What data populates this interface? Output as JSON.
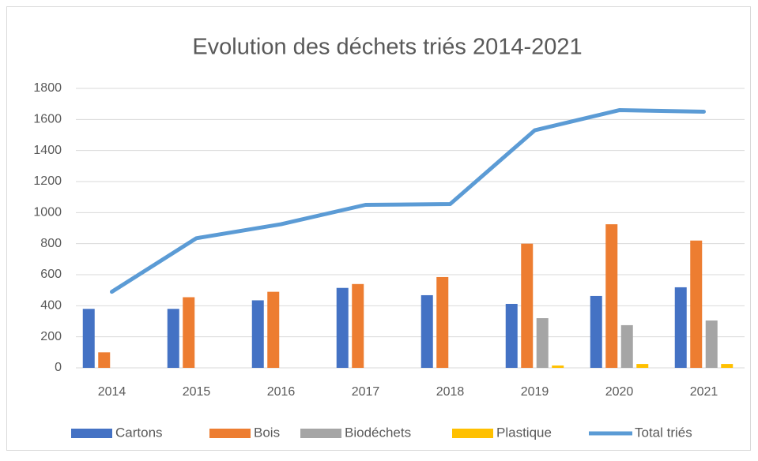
{
  "chart_data": {
    "type": "bar",
    "title": "Evolution des déchets triés 2014-2021",
    "categories": [
      "2014",
      "2015",
      "2016",
      "2017",
      "2018",
      "2019",
      "2020",
      "2021"
    ],
    "series": [
      {
        "name": "Cartons",
        "color": "#4472c4",
        "type": "bar",
        "values": [
          380,
          380,
          435,
          515,
          468,
          412,
          463,
          519
        ]
      },
      {
        "name": "Bois",
        "color": "#ed7d31",
        "type": "bar",
        "values": [
          100,
          455,
          490,
          540,
          585,
          800,
          925,
          820
        ]
      },
      {
        "name": "Biodéchets",
        "color": "#a5a5a5",
        "type": "bar",
        "values": [
          null,
          null,
          null,
          null,
          null,
          320,
          275,
          305
        ]
      },
      {
        "name": "Plastique",
        "color": "#ffc000",
        "type": "bar",
        "values": [
          null,
          null,
          null,
          null,
          null,
          15,
          25,
          25
        ]
      },
      {
        "name": "Total triés",
        "color": "#5b9bd5",
        "type": "line",
        "values": [
          490,
          835,
          925,
          1050,
          1055,
          1530,
          1660,
          1650
        ]
      }
    ],
    "ylim": [
      0,
      1800
    ],
    "yticks": [
      0,
      200,
      400,
      600,
      800,
      1000,
      1200,
      1400,
      1600,
      1800
    ],
    "grid": true,
    "legend": "bottom"
  }
}
